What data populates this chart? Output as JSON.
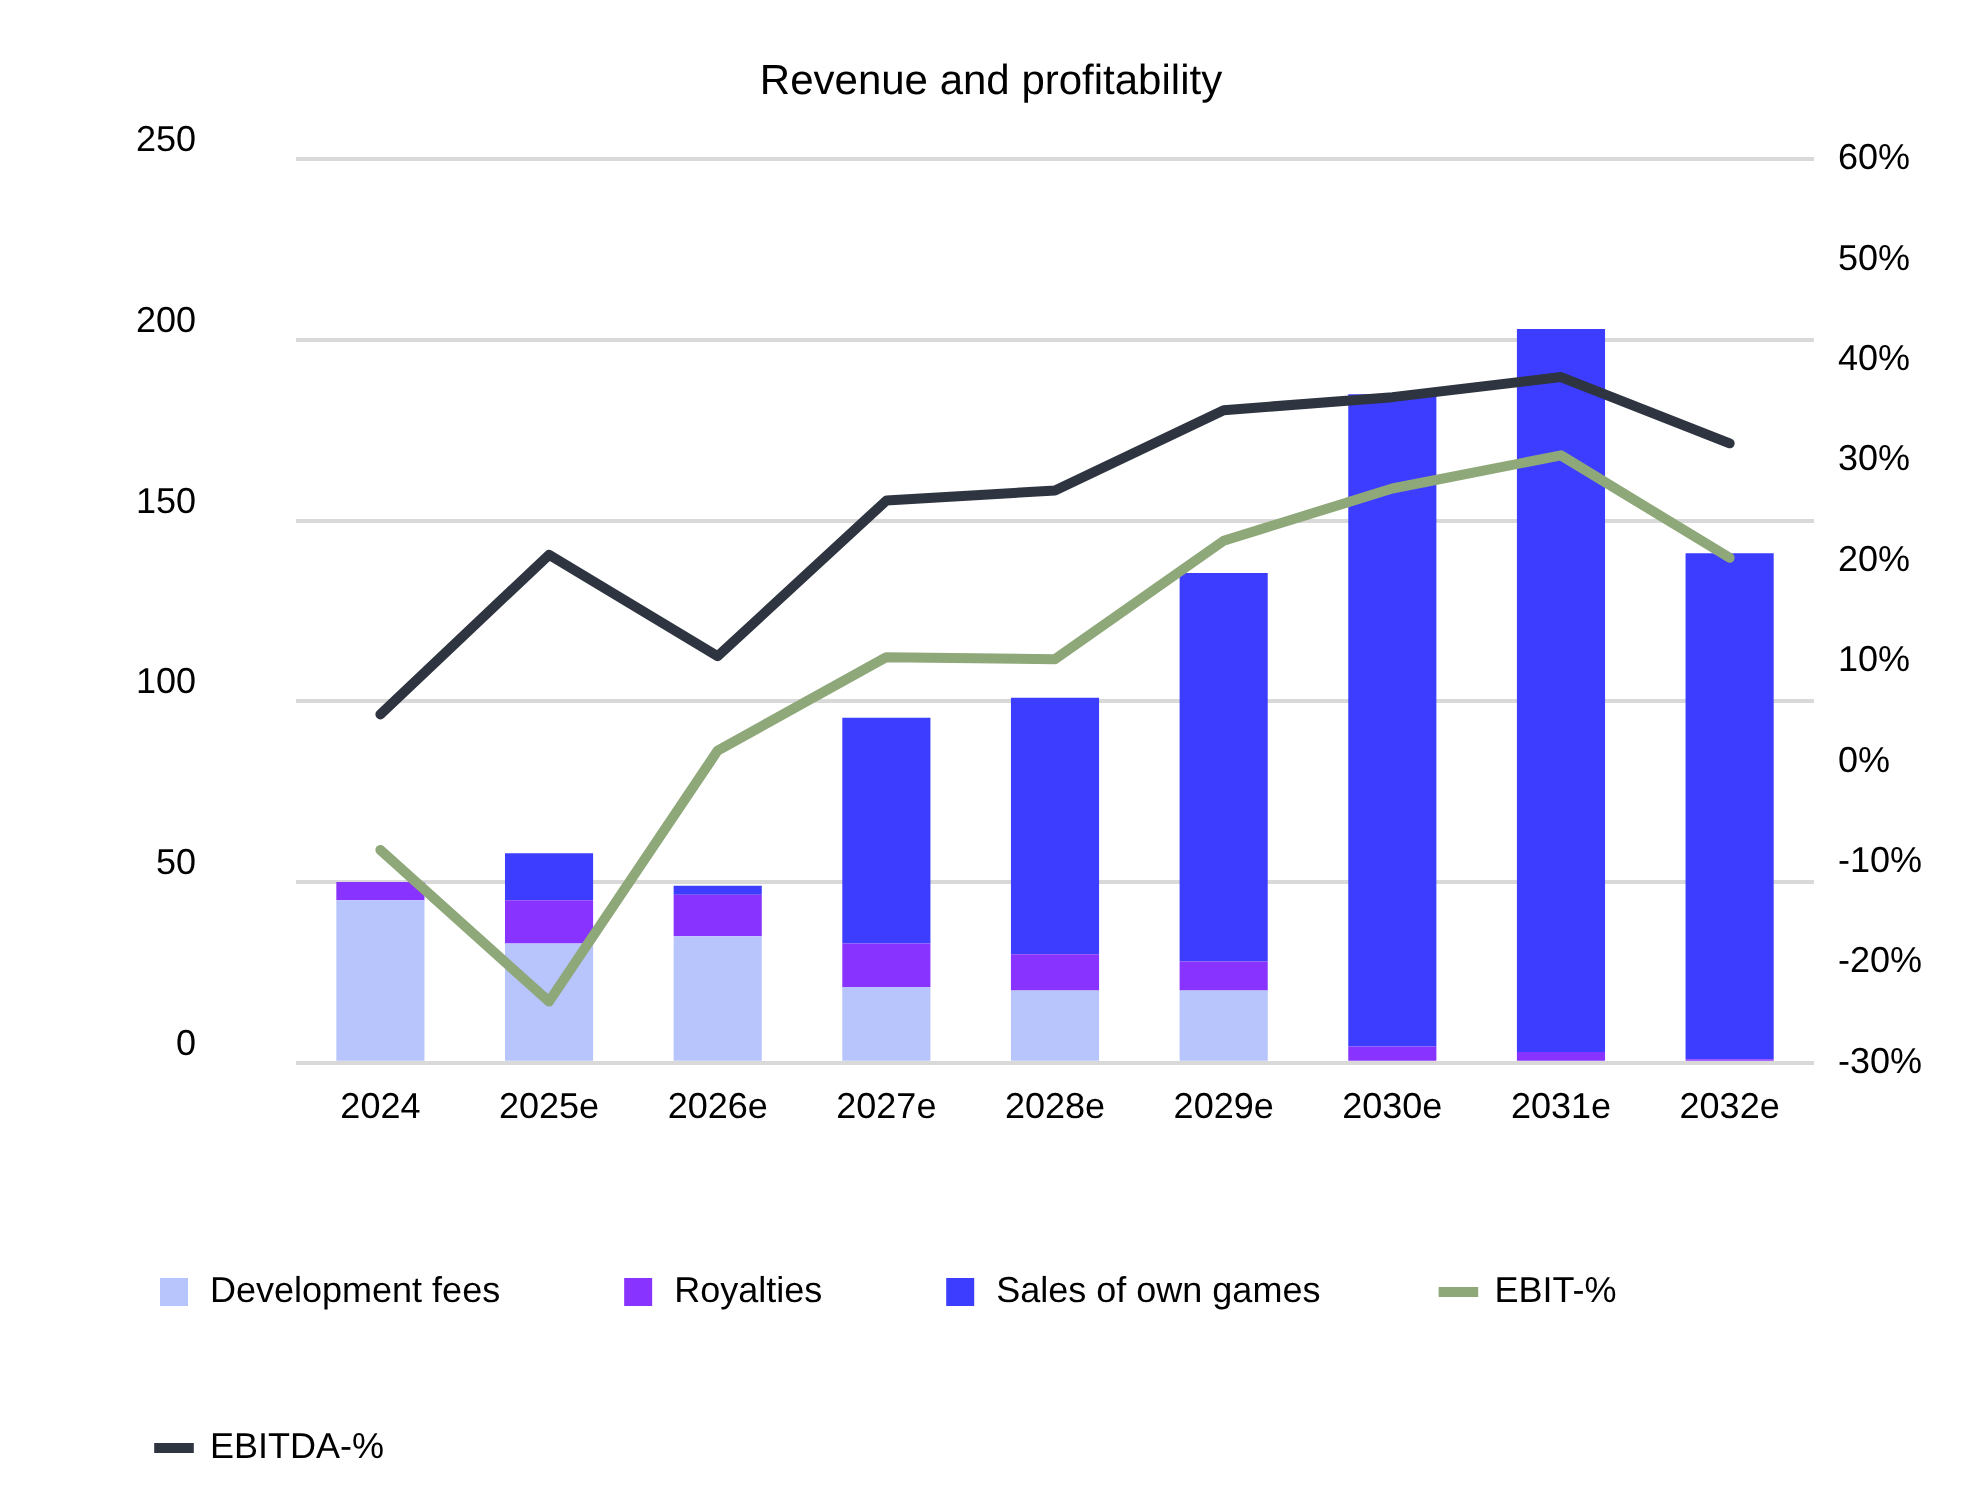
{
  "chart_data": {
    "type": "bar",
    "title": "Revenue and profitability",
    "categories": [
      "2024",
      "2025e",
      "2026e",
      "2027e",
      "2028e",
      "2029e",
      "2030e",
      "2031e",
      "2032e"
    ],
    "stacked": true,
    "series": [
      {
        "name": "Development fees",
        "color": "#b8c4fc",
        "values": [
          45,
          33,
          35,
          21,
          20,
          20,
          0,
          0,
          0
        ]
      },
      {
        "name": "Royalties",
        "color": "#8833ff",
        "values": [
          5,
          12,
          11.5,
          12,
          10,
          8,
          4.5,
          3,
          1
        ]
      },
      {
        "name": "Sales of own games",
        "color": "#3d3dff",
        "values": [
          0,
          13,
          2.5,
          62.5,
          71,
          107.5,
          180.5,
          200,
          140
        ]
      },
      {
        "name": "EBIT-%",
        "type": "line",
        "axis": "y2",
        "color": "#8fa87a",
        "values": [
          -8.8,
          -23.9,
          1.1,
          10.4,
          10.2,
          22,
          27.2,
          30.5,
          20.3
        ]
      },
      {
        "name": "EBITDA-%",
        "type": "line",
        "axis": "y2",
        "color": "#2e3440",
        "values": [
          4.7,
          20.6,
          10.5,
          26,
          27,
          35,
          36.3,
          38.3,
          31.7
        ]
      }
    ],
    "ylim": [
      0,
      250
    ],
    "yticks": [
      0,
      50,
      100,
      150,
      200,
      250
    ],
    "y2lim": [
      -30,
      60
    ],
    "y2ticks": [
      {
        "value": -30,
        "label": "-30%"
      },
      {
        "value": -20,
        "label": "-20%"
      },
      {
        "value": -10,
        "label": "-10%"
      },
      {
        "value": 0,
        "label": "0%"
      },
      {
        "value": 10,
        "label": "10%"
      },
      {
        "value": 20,
        "label": "20%"
      },
      {
        "value": 30,
        "label": "30%"
      },
      {
        "value": 40,
        "label": "40%"
      },
      {
        "value": 50,
        "label": "50%"
      },
      {
        "value": 60,
        "label": "60%"
      }
    ],
    "grid": "y",
    "legend": "bottom",
    "marker": "none",
    "line_style": "solid"
  }
}
